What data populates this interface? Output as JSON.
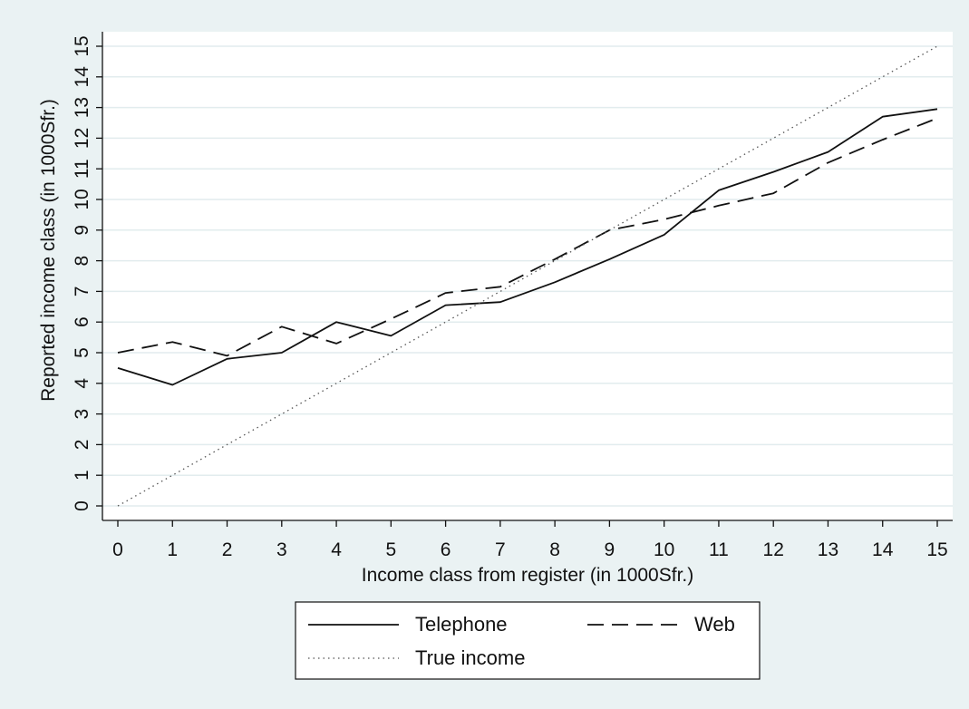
{
  "chart_data": {
    "type": "line",
    "title": "",
    "xlabel": "Income class from register (in 1000Sfr.)",
    "ylabel": "Reported income class (in 1000Sfr.)",
    "xlim": [
      0,
      15
    ],
    "ylim": [
      0,
      15
    ],
    "xticks": [
      0,
      1,
      2,
      3,
      4,
      5,
      6,
      7,
      8,
      9,
      10,
      11,
      12,
      13,
      14,
      15
    ],
    "yticks": [
      0,
      1,
      2,
      3,
      4,
      5,
      6,
      7,
      8,
      9,
      10,
      11,
      12,
      13,
      14,
      15
    ],
    "grid": true,
    "legend_position": "bottom",
    "x": [
      0,
      1,
      2,
      3,
      4,
      5,
      6,
      7,
      8,
      9,
      10,
      11,
      12,
      13,
      14,
      15
    ],
    "series": [
      {
        "name": "Telephone",
        "style": "solid",
        "color": "#111111",
        "values": [
          4.5,
          3.95,
          4.8,
          5.0,
          6.0,
          5.55,
          6.55,
          6.65,
          7.3,
          8.05,
          8.85,
          10.3,
          10.9,
          11.55,
          12.7,
          12.95
        ]
      },
      {
        "name": "Web",
        "style": "dashed",
        "color": "#111111",
        "values": [
          5.0,
          5.35,
          4.9,
          5.85,
          5.3,
          6.1,
          6.95,
          7.15,
          8.05,
          9.0,
          9.35,
          9.8,
          10.2,
          11.2,
          11.95,
          12.65
        ]
      },
      {
        "name": "True income",
        "style": "dotted",
        "color": "#555555",
        "values": [
          0,
          1,
          2,
          3,
          4,
          5,
          6,
          7,
          8,
          9,
          10,
          11,
          12,
          13,
          14,
          15
        ]
      }
    ],
    "colors": {
      "outer_background": "#eaf2f3",
      "plot_background": "#ffffff",
      "grid": "#e2ecee",
      "ink": "#111111"
    }
  }
}
